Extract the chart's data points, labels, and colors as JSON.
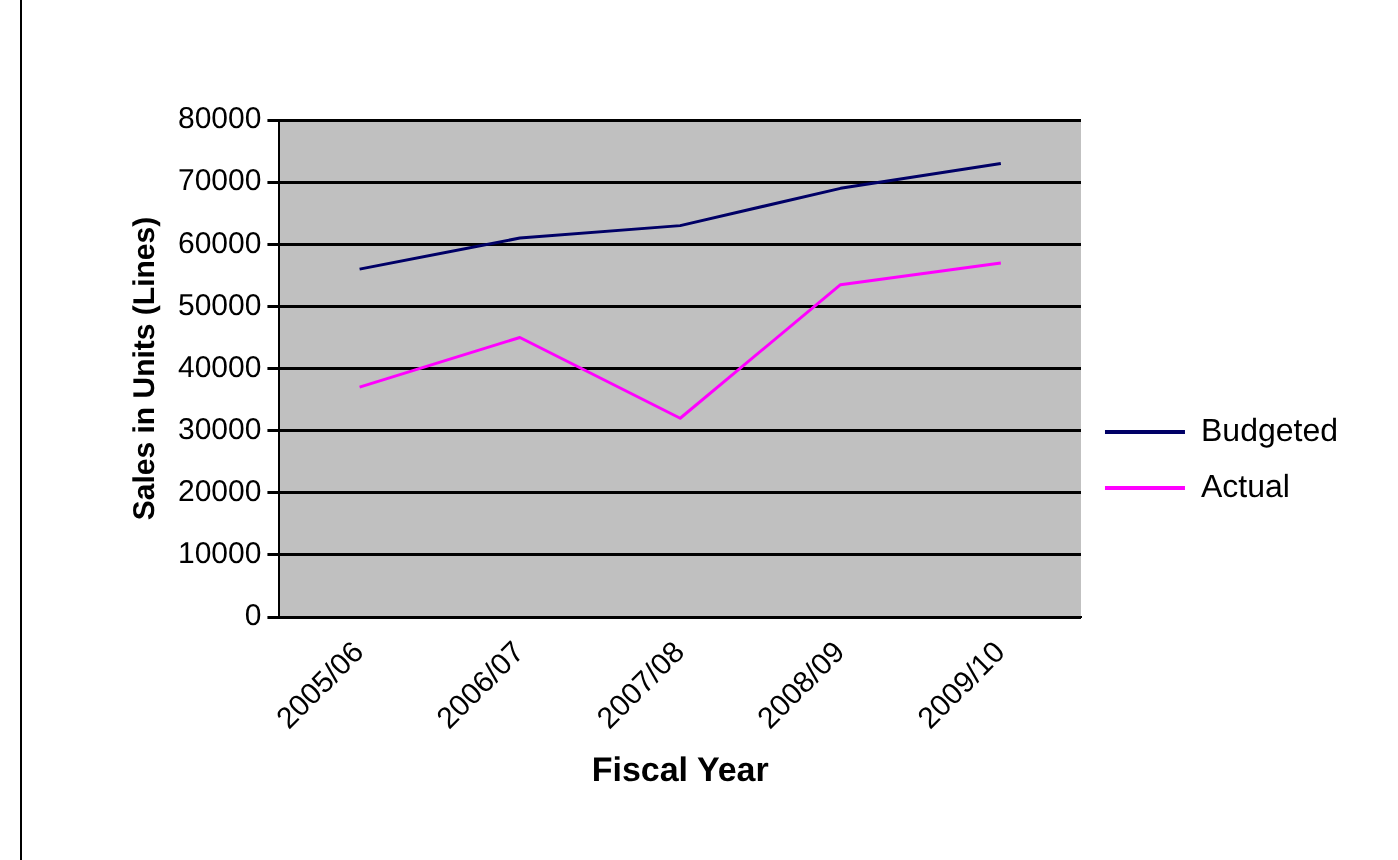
{
  "chart_data": {
    "type": "line",
    "xlabel": "Fiscal Year",
    "ylabel": "Sales in Units (Lines)",
    "categories": [
      "2005/06",
      "2006/07",
      "2007/08",
      "2008/09",
      "2009/10"
    ],
    "series": [
      {
        "name": "Budgeted",
        "color": "#000066",
        "values": [
          56000,
          61000,
          63000,
          69000,
          73000
        ]
      },
      {
        "name": "Actual",
        "color": "#ff00ff",
        "values": [
          37000,
          45000,
          32000,
          53500,
          57000
        ]
      }
    ],
    "ylim": [
      0,
      80000
    ],
    "yticks": [
      0,
      10000,
      20000,
      30000,
      40000,
      50000,
      60000,
      70000,
      80000
    ],
    "grid": "y",
    "legend": "right",
    "marker": "none",
    "line_style": "solid"
  }
}
